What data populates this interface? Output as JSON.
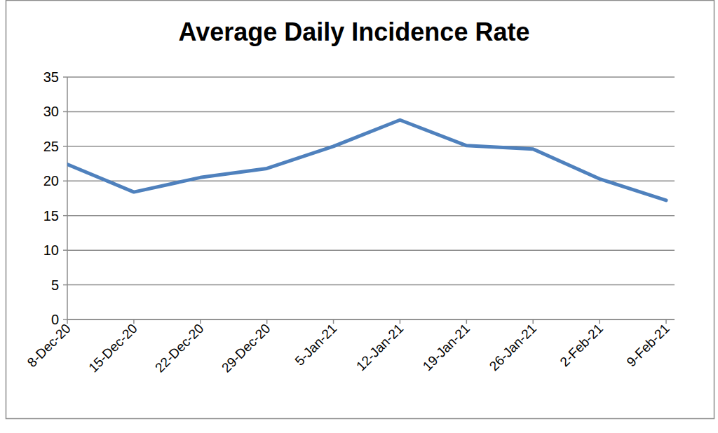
{
  "chart_data": {
    "type": "line",
    "title": "Average Daily Incidence Rate",
    "categories": [
      "8-Dec-20",
      "15-Dec-20",
      "22-Dec-20",
      "29-Dec-20",
      "5-Jan-21",
      "12-Jan-21",
      "19-Jan-21",
      "26-Jan-21",
      "2-Feb-21",
      "9-Feb-21"
    ],
    "values": [
      22.4,
      18.4,
      20.5,
      21.8,
      25.0,
      28.8,
      25.1,
      24.6,
      20.3,
      17.2
    ],
    "color": "#4f81bd",
    "ylim": [
      0,
      35
    ],
    "yticks": [
      0,
      5,
      10,
      15,
      20,
      25,
      30,
      35
    ],
    "grid": true
  }
}
